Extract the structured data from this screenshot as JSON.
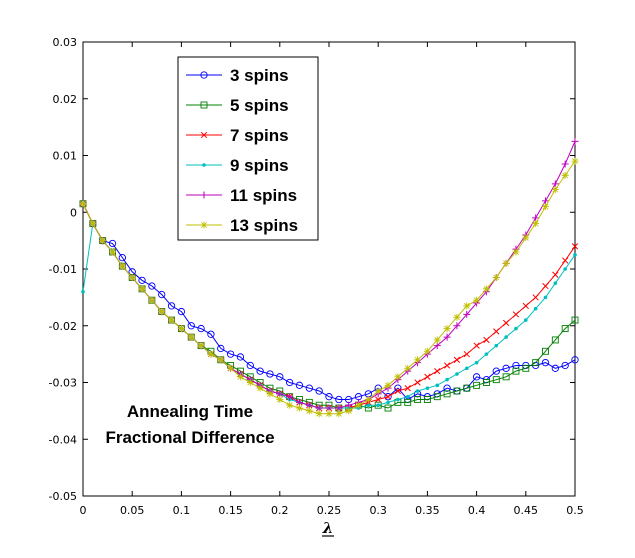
{
  "chart_data": {
    "type": "line",
    "title": "",
    "xlabel": "λ",
    "ylabel": "",
    "xlim": [
      0,
      0.5
    ],
    "ylim": [
      -0.05,
      0.03
    ],
    "x_ticks": [
      0,
      0.05,
      0.1,
      0.15,
      0.2,
      0.25,
      0.3,
      0.35,
      0.4,
      0.45,
      0.5
    ],
    "x_tick_labels": [
      "0",
      "0.05",
      "0.1",
      "0.15",
      "0.2",
      "0.25",
      "0.3",
      "0.35",
      "0.4",
      "0.45",
      "0.5"
    ],
    "y_ticks": [
      0.03,
      0.02,
      0.01,
      0,
      -0.01,
      -0.02,
      -0.03,
      -0.04,
      -0.05
    ],
    "y_tick_labels": [
      "0.03",
      "0.02",
      "0.01",
      "0",
      "-0.01",
      "-0.02",
      "-0.03",
      "-0.04",
      "-0.05"
    ],
    "grid": false,
    "legend_position": "top-left",
    "annotation": [
      "Annealing Time",
      "Fractional Difference"
    ],
    "series": [
      {
        "name": "3 spins",
        "color": "#0000ff",
        "marker": "circle",
        "x": [
          0,
          0.01,
          0.02,
          0.03,
          0.04,
          0.05,
          0.06,
          0.07,
          0.08,
          0.09,
          0.1,
          0.11,
          0.12,
          0.13,
          0.14,
          0.15,
          0.16,
          0.17,
          0.18,
          0.19,
          0.2,
          0.21,
          0.22,
          0.23,
          0.24,
          0.25,
          0.26,
          0.27,
          0.28,
          0.29,
          0.3,
          0.31,
          0.32,
          0.33,
          0.34,
          0.35,
          0.36,
          0.37,
          0.38,
          0.39,
          0.4,
          0.41,
          0.42,
          0.43,
          0.44,
          0.45,
          0.46,
          0.47,
          0.48,
          0.49,
          0.5
        ],
        "values": [
          0.0015,
          -0.002,
          -0.005,
          -0.0055,
          -0.008,
          -0.0105,
          -0.012,
          -0.013,
          -0.0145,
          -0.0165,
          -0.0175,
          -0.02,
          -0.0205,
          -0.0215,
          -0.024,
          -0.025,
          -0.0255,
          -0.027,
          -0.028,
          -0.0285,
          -0.029,
          -0.03,
          -0.0305,
          -0.031,
          -0.0315,
          -0.0325,
          -0.033,
          -0.033,
          -0.0325,
          -0.032,
          -0.031,
          -0.0325,
          -0.031,
          -0.033,
          -0.032,
          -0.0325,
          -0.032,
          -0.031,
          -0.0315,
          -0.031,
          -0.029,
          -0.0295,
          -0.028,
          -0.0275,
          -0.027,
          -0.027,
          -0.027,
          -0.0265,
          -0.0275,
          -0.027,
          -0.026
        ]
      },
      {
        "name": "5 spins",
        "color": "#008000",
        "marker": "square",
        "x": [
          0,
          0.01,
          0.02,
          0.03,
          0.04,
          0.05,
          0.06,
          0.07,
          0.08,
          0.09,
          0.1,
          0.11,
          0.12,
          0.13,
          0.14,
          0.15,
          0.16,
          0.17,
          0.18,
          0.19,
          0.2,
          0.21,
          0.22,
          0.23,
          0.24,
          0.25,
          0.26,
          0.27,
          0.28,
          0.29,
          0.3,
          0.31,
          0.32,
          0.33,
          0.34,
          0.35,
          0.36,
          0.37,
          0.38,
          0.39,
          0.4,
          0.41,
          0.42,
          0.43,
          0.44,
          0.45,
          0.46,
          0.47,
          0.48,
          0.49,
          0.5
        ],
        "values": [
          0.0015,
          -0.002,
          -0.005,
          -0.007,
          -0.0095,
          -0.0115,
          -0.0135,
          -0.0155,
          -0.0175,
          -0.019,
          -0.0205,
          -0.022,
          -0.0235,
          -0.0245,
          -0.026,
          -0.027,
          -0.028,
          -0.029,
          -0.03,
          -0.031,
          -0.0315,
          -0.0325,
          -0.033,
          -0.0335,
          -0.034,
          -0.034,
          -0.0345,
          -0.0345,
          -0.034,
          -0.0345,
          -0.034,
          -0.0345,
          -0.0335,
          -0.0335,
          -0.033,
          -0.033,
          -0.0325,
          -0.032,
          -0.0315,
          -0.031,
          -0.0305,
          -0.03,
          -0.0295,
          -0.029,
          -0.028,
          -0.0275,
          -0.0265,
          -0.0245,
          -0.0225,
          -0.0205,
          -0.019
        ]
      },
      {
        "name": "7 spins",
        "color": "#ff0000",
        "marker": "x",
        "x": [
          0,
          0.01,
          0.02,
          0.03,
          0.04,
          0.05,
          0.06,
          0.07,
          0.08,
          0.09,
          0.1,
          0.11,
          0.12,
          0.13,
          0.14,
          0.15,
          0.16,
          0.17,
          0.18,
          0.19,
          0.2,
          0.21,
          0.22,
          0.23,
          0.24,
          0.25,
          0.26,
          0.27,
          0.28,
          0.29,
          0.3,
          0.31,
          0.32,
          0.33,
          0.34,
          0.35,
          0.36,
          0.37,
          0.38,
          0.39,
          0.4,
          0.41,
          0.42,
          0.43,
          0.44,
          0.45,
          0.46,
          0.47,
          0.48,
          0.49,
          0.5
        ],
        "values": [
          0.0015,
          -0.002,
          -0.005,
          -0.007,
          -0.0095,
          -0.0115,
          -0.0135,
          -0.0155,
          -0.0175,
          -0.019,
          -0.0205,
          -0.022,
          -0.0235,
          -0.025,
          -0.026,
          -0.0275,
          -0.0285,
          -0.0295,
          -0.0305,
          -0.0315,
          -0.032,
          -0.0325,
          -0.0335,
          -0.034,
          -0.0345,
          -0.0345,
          -0.0345,
          -0.0345,
          -0.034,
          -0.0335,
          -0.033,
          -0.0325,
          -0.0315,
          -0.031,
          -0.03,
          -0.029,
          -0.028,
          -0.027,
          -0.026,
          -0.025,
          -0.0235,
          -0.0225,
          -0.021,
          -0.0195,
          -0.018,
          -0.0165,
          -0.015,
          -0.013,
          -0.011,
          -0.0085,
          -0.006
        ]
      },
      {
        "name": "9 spins",
        "color": "#00bfbf",
        "marker": "dot",
        "x": [
          0,
          0.01,
          0.02,
          0.03,
          0.04,
          0.05,
          0.06,
          0.07,
          0.08,
          0.09,
          0.1,
          0.11,
          0.12,
          0.13,
          0.14,
          0.15,
          0.16,
          0.17,
          0.18,
          0.19,
          0.2,
          0.21,
          0.22,
          0.23,
          0.24,
          0.25,
          0.26,
          0.27,
          0.28,
          0.29,
          0.3,
          0.31,
          0.32,
          0.33,
          0.34,
          0.35,
          0.36,
          0.37,
          0.38,
          0.39,
          0.4,
          0.41,
          0.42,
          0.43,
          0.44,
          0.45,
          0.46,
          0.47,
          0.48,
          0.49,
          0.5
        ],
        "values": [
          -0.014,
          -0.002,
          -0.005,
          -0.007,
          -0.0095,
          -0.0115,
          -0.0135,
          -0.0155,
          -0.0175,
          -0.019,
          -0.0205,
          -0.022,
          -0.0235,
          -0.025,
          -0.026,
          -0.0275,
          -0.0285,
          -0.0295,
          -0.0305,
          -0.0315,
          -0.032,
          -0.033,
          -0.0335,
          -0.034,
          -0.0345,
          -0.0345,
          -0.0345,
          -0.0345,
          -0.0345,
          -0.034,
          -0.034,
          -0.0335,
          -0.033,
          -0.0325,
          -0.0315,
          -0.031,
          -0.0305,
          -0.0295,
          -0.0285,
          -0.0275,
          -0.0265,
          -0.025,
          -0.0235,
          -0.022,
          -0.0205,
          -0.019,
          -0.017,
          -0.015,
          -0.0125,
          -0.01,
          -0.0075
        ]
      },
      {
        "name": "11 spins",
        "color": "#bf00bf",
        "marker": "plus",
        "x": [
          0,
          0.01,
          0.02,
          0.03,
          0.04,
          0.05,
          0.06,
          0.07,
          0.08,
          0.09,
          0.1,
          0.11,
          0.12,
          0.13,
          0.14,
          0.15,
          0.16,
          0.17,
          0.18,
          0.19,
          0.2,
          0.21,
          0.22,
          0.23,
          0.24,
          0.25,
          0.26,
          0.27,
          0.28,
          0.29,
          0.3,
          0.31,
          0.32,
          0.33,
          0.34,
          0.35,
          0.36,
          0.37,
          0.38,
          0.39,
          0.4,
          0.41,
          0.42,
          0.43,
          0.44,
          0.45,
          0.46,
          0.47,
          0.48,
          0.49,
          0.5
        ],
        "values": [
          0.0015,
          -0.002,
          -0.005,
          -0.007,
          -0.0095,
          -0.0115,
          -0.0135,
          -0.0155,
          -0.0175,
          -0.019,
          -0.0205,
          -0.022,
          -0.0235,
          -0.025,
          -0.026,
          -0.0275,
          -0.0285,
          -0.0295,
          -0.0305,
          -0.0315,
          -0.032,
          -0.0325,
          -0.0335,
          -0.034,
          -0.0345,
          -0.0345,
          -0.0345,
          -0.034,
          -0.0335,
          -0.033,
          -0.032,
          -0.031,
          -0.0295,
          -0.028,
          -0.0265,
          -0.025,
          -0.0235,
          -0.022,
          -0.02,
          -0.018,
          -0.016,
          -0.014,
          -0.0115,
          -0.009,
          -0.0065,
          -0.004,
          -0.001,
          0.002,
          0.005,
          0.0085,
          0.0125
        ]
      },
      {
        "name": "13 spins",
        "color": "#bfbf00",
        "marker": "star",
        "x": [
          0,
          0.01,
          0.02,
          0.03,
          0.04,
          0.05,
          0.06,
          0.07,
          0.08,
          0.09,
          0.1,
          0.11,
          0.12,
          0.13,
          0.14,
          0.15,
          0.16,
          0.17,
          0.18,
          0.19,
          0.2,
          0.21,
          0.22,
          0.23,
          0.24,
          0.25,
          0.26,
          0.27,
          0.28,
          0.29,
          0.3,
          0.31,
          0.32,
          0.33,
          0.34,
          0.35,
          0.36,
          0.37,
          0.38,
          0.39,
          0.4,
          0.41,
          0.42,
          0.43,
          0.44,
          0.45,
          0.46,
          0.47,
          0.48,
          0.49,
          0.5
        ],
        "values": [
          0.0015,
          -0.002,
          -0.005,
          -0.007,
          -0.0095,
          -0.0115,
          -0.0135,
          -0.0155,
          -0.0175,
          -0.019,
          -0.0205,
          -0.022,
          -0.0235,
          -0.025,
          -0.026,
          -0.0275,
          -0.029,
          -0.03,
          -0.031,
          -0.032,
          -0.033,
          -0.034,
          -0.0345,
          -0.035,
          -0.0355,
          -0.0355,
          -0.0355,
          -0.035,
          -0.034,
          -0.033,
          -0.0315,
          -0.0305,
          -0.029,
          -0.0275,
          -0.026,
          -0.0245,
          -0.0225,
          -0.0205,
          -0.0185,
          -0.0165,
          -0.0155,
          -0.0135,
          -0.0115,
          -0.009,
          -0.007,
          -0.0045,
          -0.002,
          0.001,
          0.004,
          0.0065,
          0.009
        ]
      }
    ]
  }
}
